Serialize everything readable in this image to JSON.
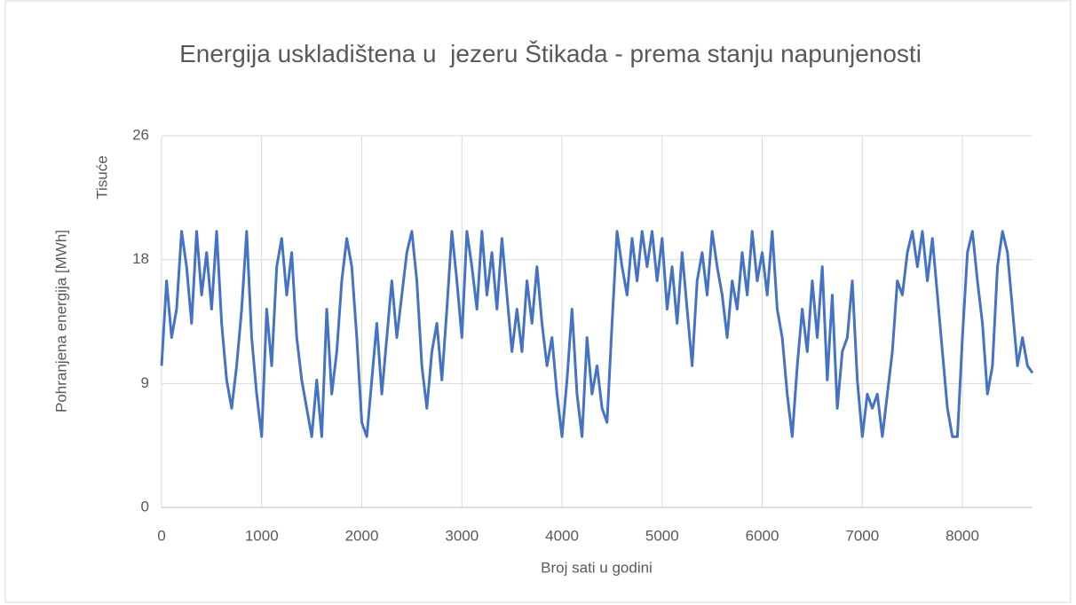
{
  "chart_data": {
    "type": "line",
    "title": "Energija uskladištena u  jezeru Štikada - prema stanju napunjenosti",
    "x_label": "Broj sati u godini",
    "y_label": "Pohranjena energija [MWh]",
    "y_display_unit": "Tisuće",
    "color": "#4472c4",
    "grid": true,
    "xlim": [
      0,
      8700
    ],
    "xticks": [
      0,
      1000,
      2000,
      3000,
      4000,
      5000,
      6000,
      7000,
      8000
    ],
    "ylim": [
      0,
      26.25
    ],
    "yticks": [
      0,
      {
        "value": 8.75,
        "label": "9"
      },
      {
        "value": 17.5,
        "label": "18"
      },
      {
        "value": 26.25,
        "label": "26"
      }
    ],
    "x": [
      0,
      50,
      100,
      150,
      200,
      250,
      300,
      350,
      400,
      450,
      500,
      550,
      600,
      650,
      700,
      750,
      800,
      850,
      900,
      950,
      1000,
      1050,
      1100,
      1150,
      1200,
      1250,
      1300,
      1350,
      1400,
      1450,
      1500,
      1550,
      1600,
      1650,
      1700,
      1750,
      1800,
      1850,
      1900,
      1950,
      2000,
      2050,
      2100,
      2150,
      2200,
      2250,
      2300,
      2350,
      2400,
      2450,
      2500,
      2550,
      2600,
      2650,
      2700,
      2750,
      2800,
      2850,
      2900,
      2950,
      3000,
      3050,
      3100,
      3150,
      3200,
      3250,
      3300,
      3350,
      3400,
      3450,
      3500,
      3550,
      3600,
      3650,
      3700,
      3750,
      3800,
      3850,
      3900,
      3950,
      4000,
      4050,
      4100,
      4150,
      4200,
      4250,
      4300,
      4350,
      4400,
      4450,
      4500,
      4550,
      4600,
      4650,
      4700,
      4750,
      4800,
      4850,
      4900,
      4950,
      5000,
      5050,
      5100,
      5150,
      5200,
      5250,
      5300,
      5350,
      5400,
      5450,
      5500,
      5550,
      5600,
      5650,
      5700,
      5750,
      5800,
      5850,
      5900,
      5950,
      6000,
      6050,
      6100,
      6150,
      6200,
      6250,
      6300,
      6350,
      6400,
      6450,
      6500,
      6550,
      6600,
      6650,
      6700,
      6750,
      6800,
      6850,
      6900,
      6950,
      7000,
      7050,
      7100,
      7150,
      7200,
      7250,
      7300,
      7350,
      7400,
      7450,
      7500,
      7550,
      7600,
      7650,
      7700,
      7750,
      7800,
      7850,
      7900,
      7950,
      8000,
      8050,
      8100,
      8150,
      8200,
      8250,
      8300,
      8350,
      8400,
      8450,
      8500,
      8550,
      8600,
      8650,
      8700
    ],
    "values": [
      10,
      16,
      12,
      14,
      19.5,
      17,
      13,
      19.5,
      15,
      18,
      14,
      19.5,
      13,
      9,
      7,
      10,
      14,
      19.5,
      12,
      8,
      5,
      14,
      10,
      17,
      19,
      15,
      18,
      12,
      9,
      7,
      5,
      9,
      5,
      14,
      8,
      11,
      16,
      19,
      17,
      12,
      6,
      5,
      9,
      13,
      8,
      12,
      16,
      12,
      15,
      18,
      19.5,
      16,
      10,
      7,
      11,
      13,
      9,
      14,
      19.5,
      16,
      12,
      19.5,
      17,
      14,
      19.5,
      15,
      18,
      14,
      19,
      15,
      11,
      14,
      11,
      16,
      13,
      17,
      13,
      10,
      12,
      8,
      5,
      9,
      14,
      8,
      5,
      12,
      8,
      10,
      7,
      6,
      13,
      19.5,
      17,
      15,
      19,
      16,
      19.5,
      17,
      19.5,
      16,
      19,
      14,
      17,
      13,
      18,
      14,
      10,
      16,
      18,
      15,
      19.5,
      17,
      15,
      12,
      16,
      14,
      18,
      15,
      19.5,
      16,
      18,
      15,
      19.5,
      14,
      12,
      8,
      5,
      10,
      14,
      11,
      16,
      12,
      17,
      9,
      15,
      7,
      11,
      12,
      16,
      9,
      5,
      8,
      7,
      8,
      5,
      8,
      11,
      16,
      15,
      18,
      19.5,
      17,
      19.5,
      16,
      19,
      15,
      11,
      7,
      5,
      5,
      12,
      18,
      19.5,
      16,
      13,
      8,
      10,
      17,
      19.5,
      18,
      14,
      10,
      12,
      10,
      9.5
    ]
  }
}
